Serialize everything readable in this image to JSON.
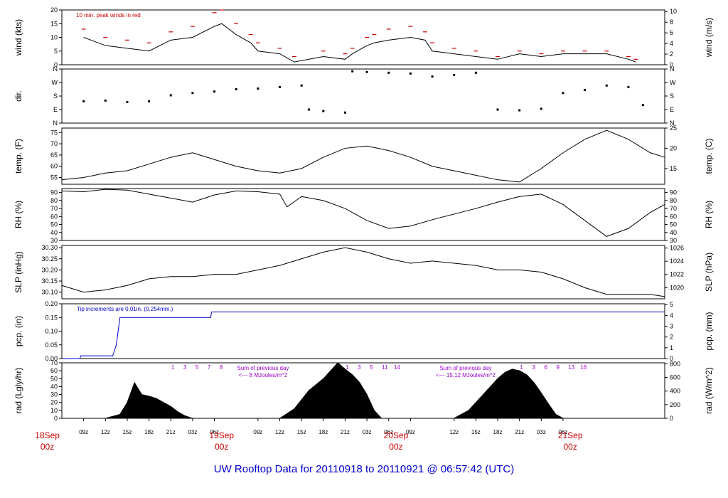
{
  "caption": {
    "prefix": "UW Rooftop Data for",
    "start": "20110918",
    "to": "to",
    "end": "20110921",
    "at": "@",
    "time": "06:57:42",
    "tz": "(UTC)"
  },
  "time_axis": {
    "hour_ticks": [
      "09z",
      "12z",
      "15z",
      "18z",
      "21z",
      "03z",
      "06z",
      "09z",
      "12z",
      "15z",
      "18z",
      "21z",
      "03z",
      "06z",
      "09z",
      "12z",
      "15z",
      "18z",
      "21z",
      "03z",
      "06z"
    ],
    "day_labels": [
      {
        "day": "18Sep",
        "time": "00z"
      },
      {
        "day": "19Sep",
        "time": "00z"
      },
      {
        "day": "20Sep",
        "time": "00z"
      },
      {
        "day": "21Sep",
        "time": "00z"
      }
    ]
  },
  "chart_data": [
    {
      "type": "line",
      "id": "wind",
      "ylabel": "wind (kts)",
      "ylabel_right": "wind (m/s)",
      "ylim": [
        0,
        20
      ],
      "yticks": [
        0,
        5,
        10,
        15,
        20
      ],
      "ylim_right": [
        0,
        10.3
      ],
      "yticks_right": [
        0,
        2,
        4,
        6,
        8,
        10
      ],
      "annotation": "10 min. peak winds in red",
      "colors": {
        "series": "#000000",
        "peaks": "#cc0000"
      },
      "series": [
        {
          "x_hours": [
            3,
            6,
            9,
            12,
            15,
            18,
            21,
            22,
            24,
            26,
            27,
            30,
            32,
            36,
            39,
            40,
            42,
            43,
            45,
            48,
            50,
            51,
            54,
            57,
            60,
            63,
            66,
            69,
            72,
            75,
            78,
            79
          ],
          "values": [
            10,
            7,
            6,
            5,
            9,
            10,
            14,
            15,
            11,
            8,
            5,
            4,
            1,
            3,
            2,
            4,
            7,
            8,
            9,
            10,
            9,
            5,
            4,
            3,
            2,
            4,
            3,
            4,
            4,
            4,
            2,
            1
          ]
        }
      ],
      "peaks": {
        "x_hours": [
          3,
          6,
          9,
          12,
          15,
          18,
          21,
          22,
          24,
          26,
          27,
          30,
          32,
          36,
          39,
          40,
          42,
          43,
          45,
          48,
          50,
          51,
          54,
          57,
          60,
          63,
          66,
          69,
          72,
          75,
          78,
          79
        ],
        "values": [
          13,
          10,
          9,
          8,
          12,
          14,
          19,
          20,
          15,
          11,
          8,
          6,
          3,
          5,
          4,
          6,
          10,
          11,
          13,
          14,
          12,
          8,
          6,
          5,
          3,
          5,
          4,
          5,
          5,
          5,
          3,
          2
        ]
      }
    },
    {
      "type": "scatter",
      "id": "dir",
      "ylabel": "dir.",
      "yticks": [
        "N",
        "E",
        "S",
        "W",
        "N"
      ],
      "yticks_right": [
        "N",
        "E",
        "S",
        "W",
        "N"
      ],
      "ylim": [
        0,
        360
      ],
      "series": [
        {
          "x_hours": [
            3,
            6,
            9,
            12,
            15,
            18,
            21,
            24,
            27,
            30,
            33,
            34,
            36,
            39,
            40,
            42,
            45,
            48,
            51,
            54,
            57,
            60,
            63,
            66,
            69,
            72,
            75,
            78,
            80
          ],
          "values": [
            145,
            150,
            140,
            145,
            185,
            200,
            210,
            225,
            230,
            240,
            250,
            90,
            80,
            70,
            345,
            340,
            335,
            330,
            310,
            320,
            335,
            90,
            85,
            95,
            200,
            220,
            250,
            240,
            120
          ]
        }
      ]
    },
    {
      "type": "line",
      "id": "temp",
      "ylabel": "temp. (F)",
      "ylabel_right": "temp. (C)",
      "ylim": [
        52,
        77
      ],
      "yticks": [
        55,
        60,
        65,
        70,
        75
      ],
      "ylim_right": [
        11.1,
        25
      ],
      "yticks_right": [
        15,
        20,
        25
      ],
      "series": [
        {
          "x_hours": [
            0,
            3,
            6,
            9,
            12,
            15,
            18,
            21,
            24,
            27,
            30,
            33,
            36,
            39,
            42,
            45,
            48,
            51,
            54,
            57,
            60,
            63,
            66,
            69,
            72,
            75,
            78,
            81,
            83
          ],
          "values": [
            54,
            55,
            57,
            58,
            61,
            64,
            66,
            63,
            60,
            58,
            57,
            59,
            64,
            68,
            69,
            67,
            64,
            60,
            58,
            56,
            54,
            53,
            59,
            66,
            72,
            76,
            72,
            66,
            64
          ]
        }
      ]
    },
    {
      "type": "line",
      "id": "rh",
      "ylabel": "RH (%)",
      "ylabel_right": "RH (%)",
      "ylim": [
        30,
        95
      ],
      "yticks": [
        30,
        40,
        50,
        60,
        70,
        80,
        90
      ],
      "ylim_right": [
        30,
        95
      ],
      "yticks_right": [
        30,
        40,
        50,
        60,
        70,
        80,
        90
      ],
      "series": [
        {
          "x_hours": [
            0,
            3,
            6,
            9,
            12,
            15,
            18,
            21,
            24,
            27,
            30,
            31,
            33,
            36,
            39,
            42,
            45,
            48,
            51,
            54,
            57,
            60,
            63,
            66,
            69,
            72,
            75,
            78,
            81,
            83
          ],
          "values": [
            92,
            91,
            94,
            93,
            88,
            83,
            78,
            87,
            92,
            91,
            88,
            72,
            85,
            80,
            70,
            55,
            45,
            48,
            56,
            63,
            70,
            78,
            85,
            88,
            75,
            55,
            35,
            45,
            65,
            75
          ]
        }
      ]
    },
    {
      "type": "line",
      "id": "slp",
      "ylabel": "SLP (inHg)",
      "ylabel_right": "SLP (hPa)",
      "ylim": [
        30.07,
        30.31
      ],
      "yticks": [
        30.1,
        30.15,
        30.2,
        30.25,
        30.3
      ],
      "ylim_right": [
        1018.3,
        1026.4
      ],
      "yticks_right": [
        1020,
        1022,
        1024,
        1026
      ],
      "series": [
        {
          "x_hours": [
            0,
            3,
            6,
            9,
            12,
            15,
            18,
            21,
            24,
            27,
            30,
            33,
            36,
            39,
            42,
            45,
            48,
            51,
            54,
            57,
            60,
            63,
            66,
            69,
            72,
            75,
            78,
            81,
            83
          ],
          "values": [
            30.13,
            30.1,
            30.11,
            30.13,
            30.16,
            30.17,
            30.17,
            30.18,
            30.18,
            30.2,
            30.22,
            30.25,
            30.28,
            30.3,
            30.28,
            30.25,
            30.23,
            30.24,
            30.23,
            30.22,
            30.2,
            30.2,
            30.19,
            30.16,
            30.12,
            30.09,
            30.09,
            30.09,
            30.08
          ]
        }
      ]
    },
    {
      "type": "area",
      "id": "pcp",
      "ylabel": "pcp. (in)",
      "ylabel_right": "pcp. (mm)",
      "ylim": [
        0,
        0.2
      ],
      "yticks": [
        0.0,
        0.05,
        0.1,
        0.15,
        0.2
      ],
      "ylim_right": [
        0,
        5.08
      ],
      "yticks_right": [
        0,
        1,
        2,
        3,
        4,
        5
      ],
      "annotation": "Tip increments are 0.01in. (0.254mm.)",
      "colors": {
        "series": "#0000cc"
      },
      "series": [
        {
          "x_hours": [
            0,
            2.5,
            2.6,
            7.0,
            7.5,
            8.0,
            20.5,
            20.6,
            83
          ],
          "values": [
            0,
            0,
            0.01,
            0.01,
            0.05,
            0.15,
            0.15,
            0.17,
            0.17
          ]
        }
      ]
    },
    {
      "type": "area",
      "id": "rad",
      "ylabel": "rad (Lgly/hr)",
      "ylabel_right": "rad (W/m^2)",
      "ylim": [
        0,
        70
      ],
      "yticks": [
        0,
        10,
        20,
        30,
        40,
        50,
        60,
        70
      ],
      "ylim_right": [
        0,
        814
      ],
      "yticks_right": [
        0,
        200,
        400,
        600,
        800
      ],
      "colors": {
        "series": "#000000",
        "annotation": "#9900cc"
      },
      "daily_sums": [
        {
          "line1": "Sum of previous day",
          "line2": "<--- 8 MJoules/m^2"
        },
        {
          "line1": "Sum of previous day",
          "line2": "<--- 15.12 MJoules/m^2"
        }
      ],
      "count_marks": [
        {
          "x_hour": 18,
          "labels": [
            "1",
            "3",
            "5",
            "7",
            "8"
          ]
        },
        {
          "x_hour": 42,
          "labels": [
            "1",
            "3",
            "5",
            "11",
            "14"
          ]
        },
        {
          "x_hour": 66,
          "labels": [
            "1",
            "3",
            "6",
            "9",
            "13",
            "16"
          ]
        }
      ],
      "series": [
        {
          "x_hours": [
            0,
            6,
            8,
            9,
            10,
            11,
            12,
            13,
            14,
            15,
            16,
            17,
            18,
            19,
            30,
            32,
            34,
            36,
            37,
            38,
            39,
            40,
            41,
            42,
            43,
            44,
            54,
            56,
            58,
            60,
            61,
            62,
            63,
            64,
            65,
            66,
            67,
            68,
            69,
            83
          ],
          "values": [
            0,
            0,
            5,
            20,
            45,
            30,
            28,
            25,
            20,
            15,
            8,
            3,
            0,
            0,
            0,
            12,
            35,
            50,
            60,
            70,
            62,
            55,
            45,
            30,
            10,
            0,
            0,
            10,
            30,
            50,
            58,
            62,
            60,
            55,
            45,
            32,
            18,
            5,
            0,
            0
          ]
        }
      ]
    }
  ]
}
